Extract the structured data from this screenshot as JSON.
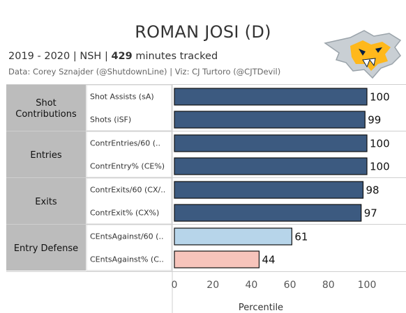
{
  "header": {
    "title": "ROMAN JOSI (D)",
    "season": "2019 - 2020",
    "team": "NSH",
    "minutes": "429",
    "minutes_suffix": "minutes tracked",
    "credits": "Data: Corey Sznajder (@ShutdownLine) | Viz: CJ Turtoro (@CJTDevil)"
  },
  "logo": {
    "icon": "nashville-predators-logo-icon",
    "colors": [
      "#c9cfd4",
      "#ffb81c",
      "#041e42"
    ]
  },
  "colors": {
    "dark_bar": "#3c5a80",
    "light_blue_bar": "#b7d5ea",
    "pink_bar": "#f7c4bb",
    "category_bg": "#bcbcbc"
  },
  "chart_data": {
    "type": "bar",
    "orientation": "horizontal",
    "xlabel": "Percentile",
    "xlim": [
      0,
      100
    ],
    "xticks": [
      "0",
      "20",
      "40",
      "60",
      "80",
      "100"
    ],
    "groups": [
      {
        "name": "Shot Contributions",
        "metrics": [
          {
            "label": "Shot Assists (sA)",
            "value": 100,
            "color": "#3c5a80"
          },
          {
            "label": "Shots (iSF)",
            "value": 99,
            "color": "#3c5a80"
          }
        ]
      },
      {
        "name": "Entries",
        "metrics": [
          {
            "label": "ContrEntries/60 (..",
            "value": 100,
            "color": "#3c5a80"
          },
          {
            "label": "ContrEntry% (CE%)",
            "value": 100,
            "color": "#3c5a80"
          }
        ]
      },
      {
        "name": "Exits",
        "metrics": [
          {
            "label": "ContrExits/60 (CX/..",
            "value": 98,
            "color": "#3c5a80"
          },
          {
            "label": "ContrExit% (CX%)",
            "value": 97,
            "color": "#3c5a80"
          }
        ]
      },
      {
        "name": "Entry Defense",
        "metrics": [
          {
            "label": "CEntsAgainst/60 (..",
            "value": 61,
            "color": "#b7d5ea"
          },
          {
            "label": "CEntsAgainst% (C..",
            "value": 44,
            "color": "#f7c4bb"
          }
        ]
      }
    ]
  }
}
